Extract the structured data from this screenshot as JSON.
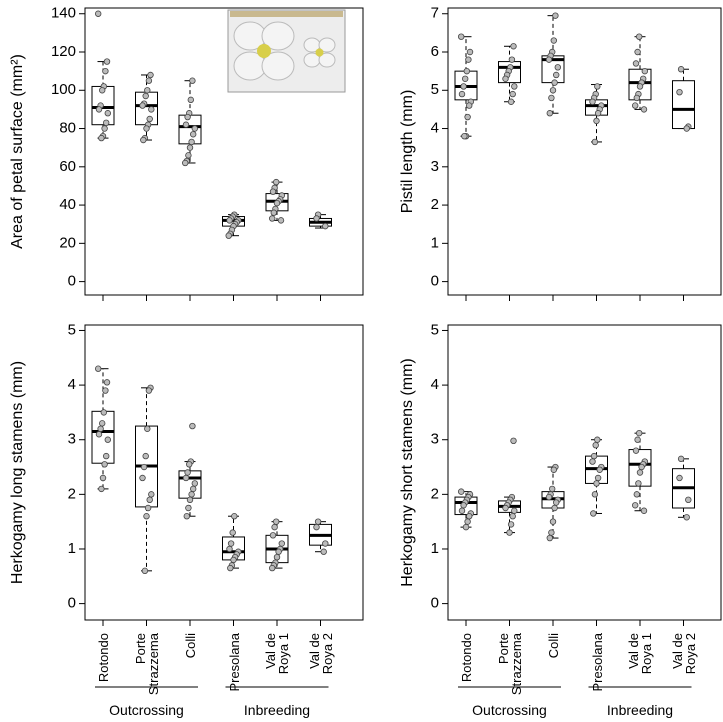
{
  "chart_data": [
    {
      "type": "box",
      "ylabel": "Area of petal surface (mm²)",
      "ylim": [
        -7,
        143
      ],
      "yticks": [
        0,
        20,
        40,
        60,
        80,
        100,
        120,
        140
      ],
      "boxes": [
        {
          "low": 75,
          "q1": 82,
          "median": 91,
          "q3": 102,
          "high": 115,
          "points": [
            140,
            115,
            110,
            102,
            100,
            92,
            90,
            88,
            83,
            80,
            76,
            75
          ]
        },
        {
          "low": 74,
          "q1": 82,
          "median": 92,
          "q3": 99,
          "high": 108,
          "points": [
            108,
            105,
            100,
            97,
            93,
            92,
            90,
            85,
            82,
            80,
            75,
            74
          ]
        },
        {
          "low": 62,
          "q1": 72,
          "median": 81,
          "q3": 87,
          "high": 105,
          "points": [
            105,
            95,
            88,
            86,
            82,
            80,
            77,
            73,
            70,
            66,
            63,
            62
          ]
        },
        {
          "low": 24,
          "q1": 29,
          "median": 32,
          "q3": 34,
          "high": 35,
          "points": [
            35,
            34,
            33,
            32,
            32,
            31,
            30,
            29,
            27,
            25,
            24
          ]
        },
        {
          "low": 32,
          "q1": 37,
          "median": 42,
          "q3": 46,
          "high": 52,
          "points": [
            52,
            49,
            47,
            45,
            43,
            42,
            41,
            38,
            36,
            33,
            32
          ]
        },
        {
          "low": 28,
          "q1": 29,
          "median": 31,
          "q3": 33,
          "high": 35,
          "points": [
            35,
            33,
            29
          ]
        }
      ]
    },
    {
      "type": "box",
      "ylabel": "Pistil length (mm)",
      "ylim": [
        -0.35,
        7.15
      ],
      "yticks": [
        0,
        1,
        2,
        3,
        4,
        5,
        6,
        7
      ],
      "boxes": [
        {
          "low": 3.8,
          "q1": 4.75,
          "median": 5.1,
          "q3": 5.5,
          "high": 6.4,
          "points": [
            6.4,
            6.0,
            5.8,
            5.5,
            5.3,
            5.1,
            4.9,
            4.7,
            4.6,
            4.3,
            3.8,
            3.8
          ]
        },
        {
          "low": 4.7,
          "q1": 5.2,
          "median": 5.6,
          "q3": 5.75,
          "high": 6.15,
          "points": [
            6.15,
            5.8,
            5.6,
            5.5,
            5.4,
            5.3,
            5.1,
            4.9,
            4.7
          ]
        },
        {
          "low": 4.4,
          "q1": 5.2,
          "median": 5.8,
          "q3": 5.9,
          "high": 6.95,
          "points": [
            6.95,
            6.3,
            6.0,
            5.9,
            5.8,
            5.6,
            5.4,
            5.2,
            5.0,
            4.8,
            4.4
          ]
        },
        {
          "low": 3.65,
          "q1": 4.35,
          "median": 4.6,
          "q3": 4.75,
          "high": 5.15,
          "points": [
            5.1,
            4.9,
            4.8,
            4.7,
            4.6,
            4.5,
            4.4,
            4.2,
            3.65
          ]
        },
        {
          "low": 4.5,
          "q1": 4.75,
          "median": 5.2,
          "q3": 5.55,
          "high": 6.4,
          "points": [
            6.4,
            6.0,
            5.7,
            5.5,
            5.3,
            5.2,
            5.1,
            4.9,
            4.8,
            4.6,
            4.5
          ]
        },
        {
          "low": 4.0,
          "q1": 4.0,
          "median": 4.5,
          "q3": 5.25,
          "high": 5.55,
          "points": [
            5.55,
            4.95,
            4.05,
            4.0
          ]
        }
      ]
    },
    {
      "type": "box",
      "ylabel": "Herkogamy long stamens (mm)",
      "ylim": [
        -0.3,
        5.1
      ],
      "yticks": [
        0,
        1,
        2,
        3,
        4,
        5
      ],
      "categories": [
        "Rotondo",
        "Porte\nStrazzema",
        "Colli",
        "Presolana",
        "Val de\nRoya 1",
        "Val de\nRoya 2"
      ],
      "groups": [
        "Outcrossing",
        "Inbreeding"
      ],
      "boxes": [
        {
          "low": 2.1,
          "q1": 2.57,
          "median": 3.15,
          "q3": 3.52,
          "high": 4.3,
          "points": [
            4.3,
            4.05,
            3.9,
            3.5,
            3.3,
            3.2,
            3.1,
            3.0,
            2.7,
            2.55,
            2.3,
            2.1
          ]
        },
        {
          "low": 0.6,
          "q1": 1.77,
          "median": 2.52,
          "q3": 3.25,
          "high": 3.95,
          "points": [
            3.95,
            3.9,
            3.2,
            2.7,
            2.5,
            2.3,
            2.0,
            1.9,
            1.75,
            1.6,
            0.6
          ]
        },
        {
          "low": 1.6,
          "q1": 1.93,
          "median": 2.3,
          "q3": 2.43,
          "high": 2.6,
          "points": [
            3.25,
            2.6,
            2.55,
            2.4,
            2.3,
            2.2,
            2.1,
            2.0,
            1.9,
            1.75,
            1.6
          ]
        },
        {
          "low": 0.65,
          "q1": 0.8,
          "median": 0.95,
          "q3": 1.22,
          "high": 1.6,
          "points": [
            1.6,
            1.3,
            1.1,
            1.0,
            0.95,
            0.9,
            0.85,
            0.8,
            0.7,
            0.65
          ]
        },
        {
          "low": 0.65,
          "q1": 0.75,
          "median": 1.0,
          "q3": 1.25,
          "high": 1.5,
          "points": [
            1.5,
            1.4,
            1.25,
            1.1,
            1.0,
            0.95,
            0.85,
            0.75,
            0.7,
            0.65
          ]
        },
        {
          "low": 0.95,
          "q1": 1.07,
          "median": 1.25,
          "q3": 1.45,
          "high": 1.5,
          "points": [
            1.5,
            1.4,
            1.1,
            0.95
          ]
        }
      ]
    },
    {
      "type": "box",
      "ylabel": "Herkogamy short stamens (mm)",
      "ylim": [
        -0.3,
        5.1
      ],
      "yticks": [
        0,
        1,
        2,
        3,
        4,
        5
      ],
      "categories": [
        "Rotondo",
        "Porte\nStrazzema",
        "Colli",
        "Presolana",
        "Val de\nRoya 1",
        "Val de\nRoya 2"
      ],
      "groups": [
        "Outcrossing",
        "Inbreeding"
      ],
      "boxes": [
        {
          "low": 1.4,
          "q1": 1.63,
          "median": 1.85,
          "q3": 1.95,
          "high": 2.05,
          "points": [
            2.05,
            2.0,
            1.95,
            1.9,
            1.85,
            1.8,
            1.7,
            1.65,
            1.6,
            1.5,
            1.4
          ]
        },
        {
          "low": 1.3,
          "q1": 1.67,
          "median": 1.78,
          "q3": 1.88,
          "high": 1.95,
          "points": [
            2.98,
            1.95,
            1.9,
            1.85,
            1.8,
            1.75,
            1.7,
            1.6,
            1.45,
            1.3
          ]
        },
        {
          "low": 1.2,
          "q1": 1.75,
          "median": 1.92,
          "q3": 2.05,
          "high": 2.5,
          "points": [
            2.5,
            2.45,
            2.1,
            2.0,
            1.95,
            1.9,
            1.85,
            1.75,
            1.5,
            1.3,
            1.2
          ]
        },
        {
          "low": 1.65,
          "q1": 2.2,
          "median": 2.47,
          "q3": 2.7,
          "high": 3.0,
          "points": [
            3.0,
            2.9,
            2.7,
            2.6,
            2.5,
            2.45,
            2.3,
            2.2,
            2.0,
            1.65
          ]
        },
        {
          "low": 1.7,
          "q1": 2.15,
          "median": 2.55,
          "q3": 2.82,
          "high": 3.12,
          "points": [
            3.12,
            3.0,
            2.8,
            2.6,
            2.55,
            2.5,
            2.4,
            2.2,
            2.0,
            1.8,
            1.7
          ]
        },
        {
          "low": 1.58,
          "q1": 1.75,
          "median": 2.12,
          "q3": 2.47,
          "high": 2.65,
          "points": [
            2.65,
            2.3,
            1.9,
            1.58
          ]
        }
      ]
    }
  ]
}
